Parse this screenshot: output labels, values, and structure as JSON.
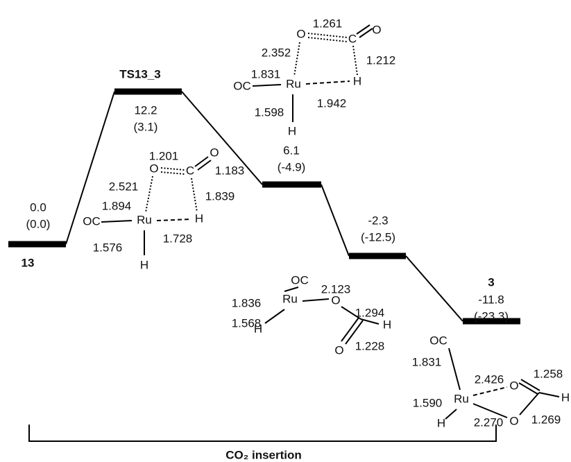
{
  "levels": [
    {
      "label": "13",
      "energy": "0.0",
      "relative": "(0.0)"
    },
    {
      "label": "TS13_3",
      "energy": "12.2",
      "relative": "(3.1)"
    },
    {
      "energy": "6.1",
      "relative": "(-4.9)"
    },
    {
      "energy": "-2.3",
      "relative": "(-12.5)"
    },
    {
      "label": "3",
      "energy": "-11.8",
      "relative": "(-23.3)"
    }
  ],
  "structures": [
    {
      "atoms": [
        "O",
        "C",
        "O",
        "Ru",
        "OC",
        "H",
        "H"
      ],
      "bonds": [
        "1.201",
        "1.183",
        "2.521",
        "1.839",
        "1.894",
        "1.576",
        "1.728"
      ]
    },
    {
      "atoms": [
        "O",
        "C",
        "O",
        "Ru",
        "OC",
        "H",
        "H"
      ],
      "bonds": [
        "1.261",
        "2.352",
        "1.212",
        "1.831",
        "1.598",
        "1.942"
      ]
    },
    {
      "atoms": [
        "OC",
        "Ru",
        "O",
        "H",
        "O",
        "H"
      ],
      "bonds": [
        "1.836",
        "2.123",
        "1.294",
        "1.568",
        "1.228"
      ]
    },
    {
      "atoms": [
        "OC",
        "Ru",
        "O",
        "H",
        "O",
        "H"
      ],
      "bonds": [
        "2.426",
        "1.258",
        "1.831",
        "1.590",
        "2.270",
        "1.269"
      ]
    }
  ],
  "bracket_label": "CO₂ insertion"
}
